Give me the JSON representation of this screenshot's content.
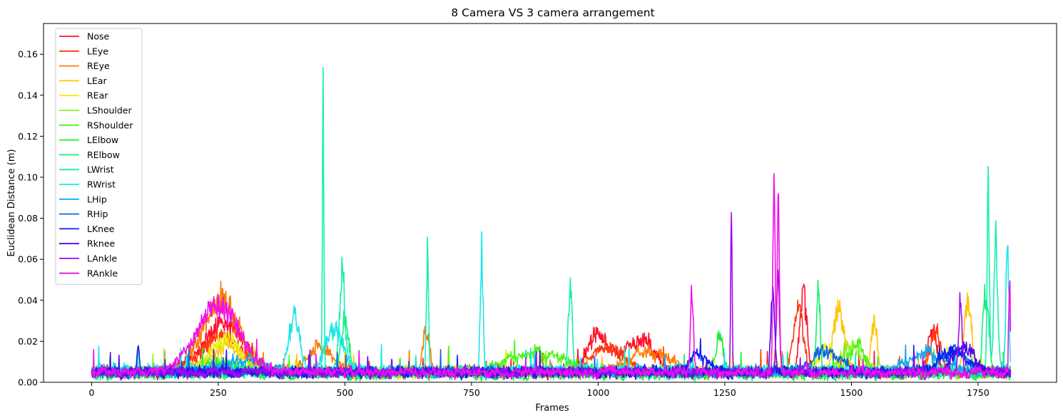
{
  "chart_data": {
    "type": "line",
    "title": "8 Camera VS 3 camera arrangement",
    "xlabel": "Frames",
    "ylabel": "Euclidean Distance (m)",
    "xlim": [
      -95,
      1905
    ],
    "ylim": [
      0,
      0.175
    ],
    "xticks": [
      0,
      250,
      500,
      750,
      1000,
      1250,
      1500,
      1750
    ],
    "yticks": [
      0.0,
      0.02,
      0.04,
      0.06,
      0.08,
      0.1,
      0.12,
      0.14,
      0.16
    ],
    "yticks_labels": [
      "0.00",
      "0.02",
      "0.04",
      "0.06",
      "0.08",
      "0.10",
      "0.12",
      "0.14",
      "0.16"
    ],
    "grid": false,
    "legend_position": "top-left",
    "n_frames": 1815,
    "series": [
      {
        "name": "Nose",
        "color": "#ff1128",
        "baseline": 0.005,
        "bumps": [
          [
            260,
            60,
            0.023
          ],
          [
            1000,
            30,
            0.018
          ],
          [
            1080,
            40,
            0.016
          ],
          [
            1405,
            10,
            0.04
          ],
          [
            1660,
            12,
            0.02
          ]
        ]
      },
      {
        "name": "LEye",
        "color": "#ff3a10",
        "baseline": 0.005,
        "bumps": [
          [
            255,
            55,
            0.017
          ],
          [
            1020,
            50,
            0.012
          ],
          [
            1395,
            15,
            0.03
          ],
          [
            1665,
            15,
            0.02
          ]
        ]
      },
      {
        "name": "REye",
        "color": "#ff7a00",
        "baseline": 0.005,
        "bumps": [
          [
            255,
            50,
            0.035
          ],
          [
            450,
            40,
            0.012
          ],
          [
            660,
            10,
            0.02
          ],
          [
            1100,
            60,
            0.01
          ]
        ]
      },
      {
        "name": "LEar",
        "color": "#ffc400",
        "baseline": 0.005,
        "bumps": [
          [
            265,
            45,
            0.013
          ],
          [
            1475,
            15,
            0.03
          ],
          [
            1545,
            8,
            0.025
          ],
          [
            1730,
            10,
            0.035
          ]
        ]
      },
      {
        "name": "REar",
        "color": "#eaf20a",
        "baseline": 0.005,
        "bumps": [
          [
            265,
            40,
            0.016
          ],
          [
            1450,
            20,
            0.012
          ]
        ]
      },
      {
        "name": "LShoulder",
        "color": "#8ef51f",
        "baseline": 0.005,
        "bumps": [
          [
            250,
            60,
            0.006
          ],
          [
            1500,
            30,
            0.012
          ]
        ]
      },
      {
        "name": "RShoulder",
        "color": "#4ef515",
        "baseline": 0.005,
        "bumps": [
          [
            880,
            80,
            0.01
          ],
          [
            1510,
            20,
            0.014
          ]
        ]
      },
      {
        "name": "LElbow",
        "color": "#15f032",
        "baseline": 0.004,
        "bumps": [
          [
            260,
            50,
            0.005
          ],
          [
            1240,
            10,
            0.018
          ]
        ]
      },
      {
        "name": "RElbow",
        "color": "#15f070",
        "baseline": 0.004,
        "bumps": [
          [
            500,
            10,
            0.03
          ],
          [
            1435,
            5,
            0.045
          ],
          [
            1765,
            8,
            0.04
          ]
        ]
      },
      {
        "name": "LWrist",
        "color": "#14f0b0",
        "baseline": 0.006,
        "bumps": [
          [
            457,
            2,
            0.15
          ],
          [
            495,
            8,
            0.045
          ],
          [
            663,
            3,
            0.055
          ],
          [
            945,
            5,
            0.04
          ],
          [
            1770,
            3,
            0.085
          ],
          [
            1785,
            5,
            0.065
          ]
        ]
      },
      {
        "name": "RWrist",
        "color": "#1ae6ea",
        "baseline": 0.006,
        "bumps": [
          [
            400,
            15,
            0.025
          ],
          [
            480,
            25,
            0.02
          ],
          [
            770,
            4,
            0.058
          ],
          [
            1808,
            4,
            0.065
          ]
        ]
      },
      {
        "name": "LHip",
        "color": "#12a6f0",
        "baseline": 0.005,
        "bumps": [
          [
            300,
            60,
            0.006
          ],
          [
            1650,
            50,
            0.01
          ]
        ]
      },
      {
        "name": "RHip",
        "color": "#1260e8",
        "baseline": 0.005,
        "bumps": [
          [
            1450,
            40,
            0.01
          ],
          [
            1700,
            40,
            0.01
          ]
        ]
      },
      {
        "name": "LKnee",
        "color": "#0a1ef0",
        "baseline": 0.005,
        "bumps": [
          [
            92,
            3,
            0.014
          ],
          [
            1200,
            30,
            0.008
          ],
          [
            1700,
            40,
            0.01
          ]
        ]
      },
      {
        "name": "Rknee",
        "color": "#4a0ae6",
        "baseline": 0.005,
        "bumps": [
          [
            1345,
            5,
            0.045
          ],
          [
            1720,
            30,
            0.012
          ]
        ]
      },
      {
        "name": "LAnkle",
        "color": "#a008f0",
        "baseline": 0.005,
        "bumps": [
          [
            1263,
            2,
            0.07
          ],
          [
            1355,
            4,
            0.05
          ],
          [
            1715,
            5,
            0.035
          ]
        ]
      },
      {
        "name": "RAnkle",
        "color": "#f010ea",
        "baseline": 0.005,
        "bumps": [
          [
            250,
            60,
            0.032
          ],
          [
            1185,
            4,
            0.04
          ],
          [
            1347,
            3,
            0.098
          ],
          [
            1356,
            3,
            0.085
          ],
          [
            1812,
            2,
            0.05
          ]
        ]
      }
    ]
  }
}
